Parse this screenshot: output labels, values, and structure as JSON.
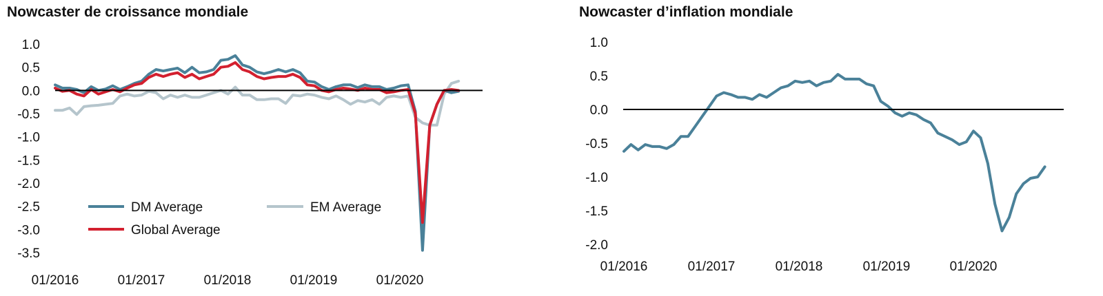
{
  "chart_data": [
    {
      "type": "line",
      "title": "Nowcaster de croissance mondiale",
      "xlabel": "",
      "ylabel": "",
      "ylim": [
        -3.5,
        1.0
      ],
      "yticks": [
        "1.0",
        "0.5",
        "0.0",
        "-0.5",
        "-1.0",
        "-1.5",
        "-2.0",
        "-2.5",
        "-3.0",
        "-3.5"
      ],
      "xticks": [
        "01/2016",
        "01/2017",
        "01/2018",
        "01/2019",
        "01/2020"
      ],
      "x_start": "2016-01",
      "x_frequency": "monthly",
      "zero_line": true,
      "legend_position": "bottom-left",
      "series": [
        {
          "name": "DM Average",
          "color": "#4a8199",
          "values": [
            0.12,
            0.05,
            0.05,
            0.02,
            -0.05,
            0.08,
            0.0,
            0.03,
            0.1,
            0.02,
            0.08,
            0.15,
            0.2,
            0.35,
            0.45,
            0.42,
            0.45,
            0.48,
            0.38,
            0.5,
            0.38,
            0.4,
            0.45,
            0.65,
            0.67,
            0.75,
            0.55,
            0.5,
            0.4,
            0.36,
            0.4,
            0.45,
            0.4,
            0.45,
            0.38,
            0.2,
            0.18,
            0.08,
            0.02,
            0.08,
            0.12,
            0.12,
            0.06,
            0.12,
            0.08,
            0.08,
            0.02,
            0.05,
            0.1,
            0.12,
            -0.45,
            -3.45,
            -0.75,
            -0.3,
            0.0,
            -0.05,
            -0.02
          ]
        },
        {
          "name": "EM Average",
          "color": "#b5c5cc",
          "values": [
            -0.43,
            -0.43,
            -0.38,
            -0.52,
            -0.35,
            -0.33,
            -0.32,
            -0.3,
            -0.28,
            -0.12,
            -0.08,
            -0.12,
            -0.1,
            -0.02,
            -0.05,
            -0.18,
            -0.1,
            -0.15,
            -0.1,
            -0.15,
            -0.15,
            -0.1,
            -0.05,
            0.0,
            -0.08,
            0.07,
            -0.1,
            -0.1,
            -0.2,
            -0.2,
            -0.18,
            -0.18,
            -0.28,
            -0.1,
            -0.12,
            -0.08,
            -0.1,
            -0.15,
            -0.18,
            -0.12,
            -0.2,
            -0.3,
            -0.22,
            -0.25,
            -0.2,
            -0.3,
            -0.15,
            -0.12,
            -0.15,
            -0.12,
            -0.58,
            -0.7,
            -0.75,
            -0.75,
            -0.08,
            0.15,
            0.2
          ]
        },
        {
          "name": "Global Average",
          "color": "#d3202f",
          "values": [
            0.05,
            -0.02,
            0.0,
            -0.08,
            -0.12,
            0.02,
            -0.08,
            -0.03,
            0.02,
            -0.03,
            0.05,
            0.12,
            0.15,
            0.28,
            0.35,
            0.3,
            0.35,
            0.38,
            0.28,
            0.35,
            0.25,
            0.3,
            0.35,
            0.5,
            0.52,
            0.6,
            0.45,
            0.4,
            0.3,
            0.25,
            0.28,
            0.3,
            0.3,
            0.35,
            0.28,
            0.12,
            0.1,
            0.0,
            -0.03,
            0.02,
            0.05,
            0.03,
            0.0,
            0.05,
            0.02,
            0.02,
            -0.05,
            -0.03,
            0.0,
            0.02,
            -0.5,
            -2.85,
            -0.75,
            -0.3,
            0.0,
            0.02,
            0.0
          ]
        }
      ]
    },
    {
      "type": "line",
      "title": "Nowcaster d’inflation mondiale",
      "xlabel": "",
      "ylabel": "",
      "ylim": [
        -2.0,
        1.0
      ],
      "yticks": [
        "1.0",
        "0.5",
        "0.0",
        "-0.5",
        "-1.0",
        "-1.5",
        "-2.0"
      ],
      "xticks": [
        "01/2016",
        "01/2017",
        "01/2018",
        "01/2019",
        "01/2020"
      ],
      "x_start": "2016-01",
      "x_frequency": "monthly",
      "zero_line": true,
      "legend_position": "none",
      "series": [
        {
          "color": "#4a8199",
          "values": [
            -0.62,
            -0.52,
            -0.6,
            -0.52,
            -0.55,
            -0.55,
            -0.58,
            -0.52,
            -0.4,
            -0.4,
            -0.25,
            -0.1,
            0.05,
            0.2,
            0.25,
            0.22,
            0.18,
            0.18,
            0.15,
            0.22,
            0.18,
            0.25,
            0.32,
            0.35,
            0.42,
            0.4,
            0.42,
            0.35,
            0.4,
            0.42,
            0.52,
            0.45,
            0.45,
            0.45,
            0.38,
            0.35,
            0.12,
            0.05,
            -0.05,
            -0.1,
            -0.05,
            -0.08,
            -0.15,
            -0.2,
            -0.35,
            -0.4,
            -0.45,
            -0.52,
            -0.48,
            -0.32,
            -0.42,
            -0.8,
            -1.4,
            -1.8,
            -1.6,
            -1.25,
            -1.1,
            -1.02,
            -1.0,
            -0.85
          ]
        }
      ]
    }
  ]
}
